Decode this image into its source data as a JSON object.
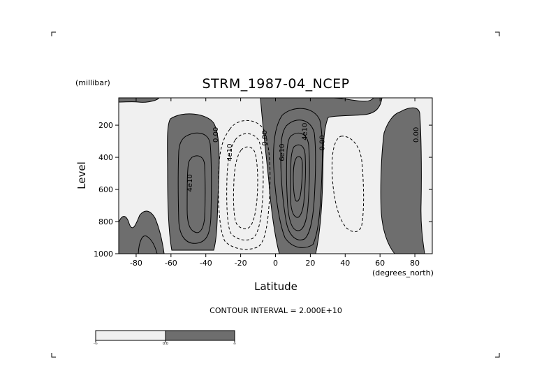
{
  "chart_data": {
    "type": "contour",
    "title": "STRM_1987-04_NCEP",
    "xlabel": "Latitude",
    "x_unit": "(degrees_north)",
    "ylabel": "Level",
    "y_unit": "(millibar)",
    "xlim": [
      -90,
      90
    ],
    "ylim": [
      1000,
      30
    ],
    "x_ticks": [
      {
        "value": -80,
        "label": "-80"
      },
      {
        "value": -60,
        "label": "-60"
      },
      {
        "value": -40,
        "label": "-40"
      },
      {
        "value": -20,
        "label": "-20"
      },
      {
        "value": 0,
        "label": "0"
      },
      {
        "value": 20,
        "label": "20"
      },
      {
        "value": 40,
        "label": "40"
      },
      {
        "value": 60,
        "label": "60"
      },
      {
        "value": 80,
        "label": "80"
      }
    ],
    "y_ticks": [
      {
        "value": 200,
        "label": "200"
      },
      {
        "value": 400,
        "label": "400"
      },
      {
        "value": 600,
        "label": "600"
      },
      {
        "value": 800,
        "label": "800"
      },
      {
        "value": 1000,
        "label": "1000"
      }
    ],
    "contour_interval_text": "CONTOUR INTERVAL = 2.000E+10",
    "fill_colors": {
      "negative": "#f0f0f0",
      "positive": "#6e6e6e",
      "line": "#000000"
    },
    "contour_labels": [
      {
        "text": "4e10",
        "x": -48,
        "y": 560
      },
      {
        "text": "0.00",
        "x": -33,
        "y": 260
      },
      {
        "text": "4e10",
        "x": -25,
        "y": 370
      },
      {
        "text": "0.00",
        "x": -5,
        "y": 280
      },
      {
        "text": "6e10",
        "x": 5,
        "y": 370
      },
      {
        "text": "4e10",
        "x": 18,
        "y": 240
      },
      {
        "text": "0.00",
        "x": 28,
        "y": 310
      },
      {
        "text": "0.00",
        "x": 82,
        "y": 260
      }
    ],
    "colorbar": {
      "labels": [
        "-∞",
        "0.0",
        "∞"
      ],
      "colors": [
        "#f0f0f0",
        "#6e6e6e"
      ]
    }
  }
}
